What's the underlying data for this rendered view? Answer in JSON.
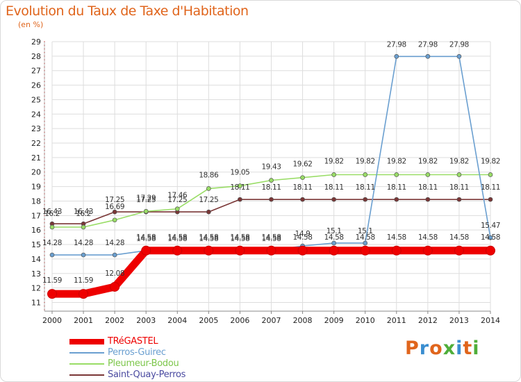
{
  "title": "Evolution du Taux de Taxe d'Habitation",
  "subtitle": "(en %)",
  "logo": {
    "text": [
      "P",
      "r",
      "o",
      "x",
      "i",
      "t",
      "i"
    ],
    "colors": [
      "#e0651c",
      "#3a8ed0",
      "#e0651c",
      "#4fae3a",
      "#3a8ed0",
      "#e0651c",
      "#4fae3a"
    ]
  },
  "chart_data": {
    "type": "line",
    "title": "Evolution du Taux de Taxe d'Habitation",
    "ylabel": "(en %)",
    "xlabel": "",
    "x": [
      2000,
      2001,
      2002,
      2003,
      2004,
      2005,
      2006,
      2007,
      2008,
      2009,
      2010,
      2011,
      2012,
      2013,
      2014
    ],
    "ylim": [
      10.4,
      29
    ],
    "yticks": [
      11,
      12,
      13,
      14,
      15,
      16,
      17,
      18,
      19,
      20,
      21,
      22,
      23,
      24,
      25,
      26,
      27,
      28,
      29
    ],
    "grid": true,
    "legend": "bottom-left",
    "series": [
      {
        "name": "TRéGASTEL",
        "color": "#ee0000",
        "values": [
          11.59,
          11.59,
          12.08,
          14.58,
          14.58,
          14.58,
          14.58,
          14.58,
          14.58,
          14.58,
          14.58,
          14.58,
          14.58,
          14.58,
          14.58
        ],
        "labels": [
          "11.59",
          "11.59",
          "12.08",
          "14.58",
          "14.58",
          "14.58",
          "14.58",
          "14.58",
          "14.58",
          "14.58",
          "14.58",
          "14.58",
          "14.58",
          "14.58",
          "14.58"
        ]
      },
      {
        "name": "Perros-Guirec",
        "color": "#6a9fd0",
        "values": [
          14.28,
          14.28,
          14.28,
          14.58,
          14.58,
          14.58,
          14.58,
          14.58,
          14.9,
          15.1,
          15.1,
          27.98,
          27.98,
          27.98,
          15.47
        ],
        "labels": [
          "14.28",
          "14.28",
          "14.28",
          "14.58",
          "14.58",
          "14.58",
          "14.58",
          "14.58",
          "14.9",
          "15.1",
          "15.1",
          "27.98",
          "27.98",
          "27.98",
          "15.47"
        ]
      },
      {
        "name": "Pleumeur-Bodou",
        "color": "#99dd66",
        "values": [
          16.2,
          16.2,
          16.69,
          17.29,
          17.46,
          18.86,
          19.05,
          19.43,
          19.62,
          19.82,
          19.82,
          19.82,
          19.82,
          19.82,
          19.82
        ],
        "labels": [
          "16.2",
          "16.2",
          "16.69",
          "17.29",
          "17.46",
          "18.86",
          "19.05",
          "19.43",
          "19.62",
          "19.82",
          "19.82",
          "19.82",
          "19.82",
          "19.82",
          "19.82"
        ]
      },
      {
        "name": "Saint-Quay-Perros",
        "color": "#7a3636",
        "values": [
          16.43,
          16.43,
          17.25,
          17.25,
          17.25,
          17.25,
          18.11,
          18.11,
          18.11,
          18.11,
          18.11,
          18.11,
          18.11,
          18.11,
          18.11
        ],
        "labels": [
          "16.43",
          "16.43",
          "17.25",
          "17.25",
          "17.25",
          "17.25",
          "18.11",
          "18.11",
          "18.11",
          "18.11",
          "18.11",
          "18.11",
          "18.11",
          "18.11",
          "18.11"
        ]
      }
    ]
  }
}
